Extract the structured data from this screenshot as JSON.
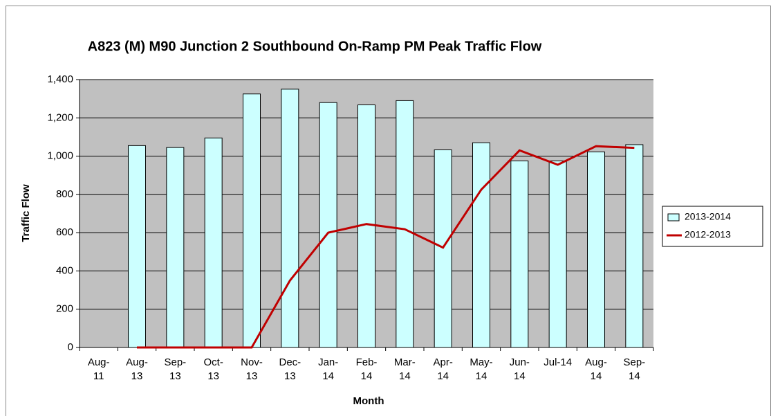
{
  "chart_data": {
    "type": "bar_line",
    "title": "A823 (M) M90 Junction 2 Southbound On-Ramp PM Peak Traffic Flow",
    "x_label": "Month",
    "y_label": "Traffic Flow",
    "categories": [
      "Aug-11",
      "Aug-13",
      "Sep-13",
      "Oct-13",
      "Nov-13",
      "Dec-13",
      "Jan-14",
      "Feb-14",
      "Mar-14",
      "Apr-14",
      "May-14",
      "Jun-14",
      "Jul-14",
      "Aug-14",
      "Sep-14"
    ],
    "series": [
      {
        "name": "2013-2014",
        "type": "bar",
        "color": "#ccffff",
        "values": [
          null,
          1055,
          1045,
          1095,
          1325,
          1350,
          1280,
          1268,
          1290,
          1033,
          1070,
          975,
          975,
          1022,
          1060
        ]
      },
      {
        "name": "2012-2013",
        "type": "line",
        "color": "#c00000",
        "values": [
          null,
          0,
          0,
          0,
          0,
          350,
          600,
          645,
          618,
          522,
          825,
          1030,
          955,
          1052,
          1043
        ]
      }
    ],
    "ylim": [
      0,
      1400
    ],
    "yticks": [
      0,
      200,
      400,
      600,
      800,
      {
        "value": 1000,
        "label": "1,000"
      },
      {
        "value": 1200,
        "label": "1,200"
      },
      {
        "value": 1400,
        "label": "1,400"
      }
    ],
    "grid": true,
    "legend": "right",
    "plot_background": "#c0c0c0"
  }
}
